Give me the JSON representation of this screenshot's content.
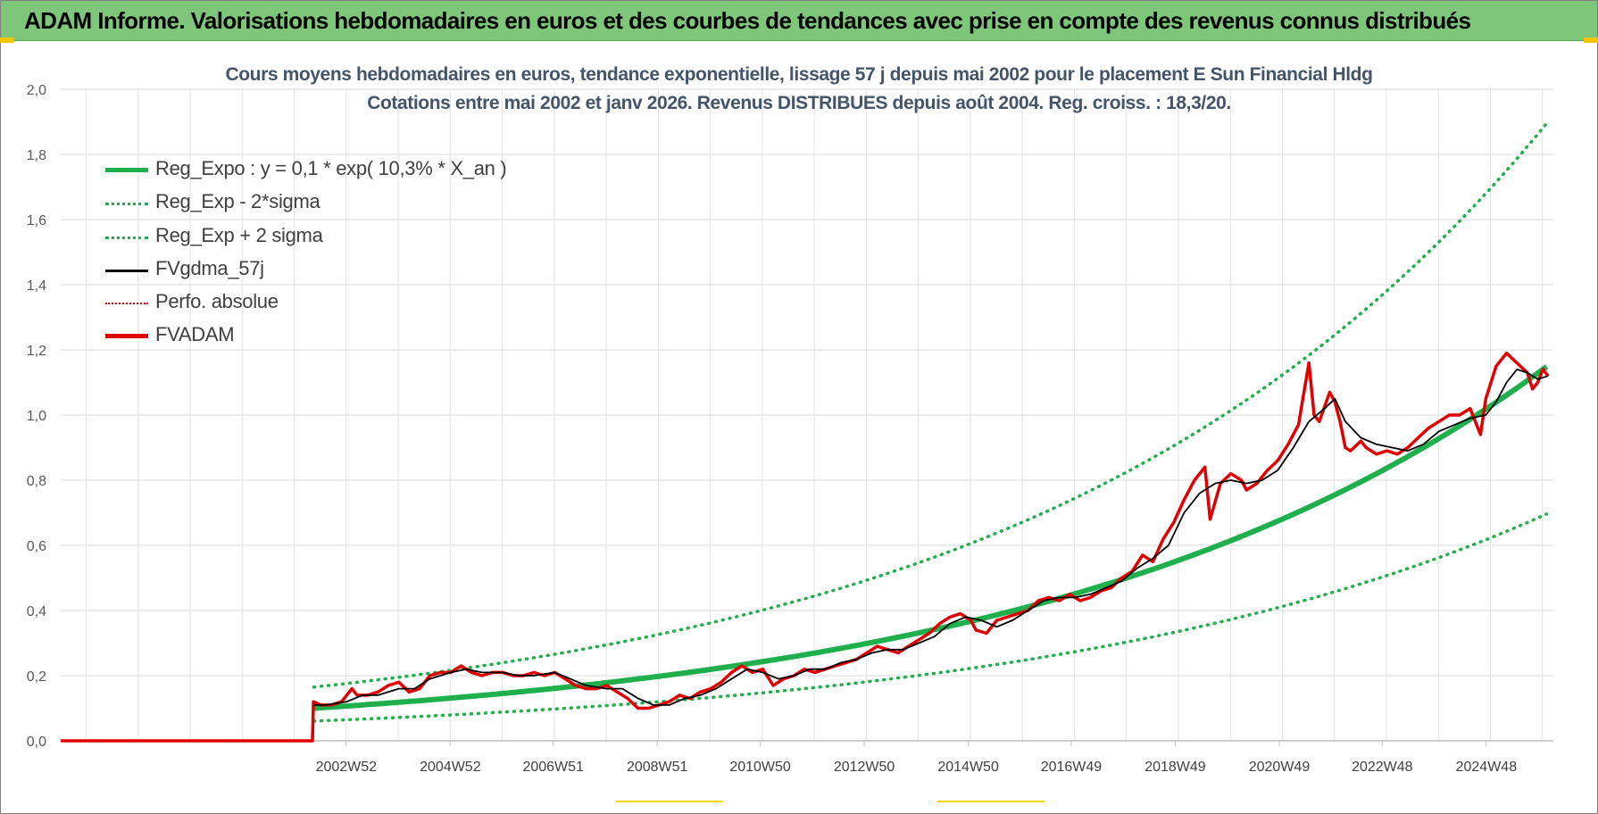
{
  "header": {
    "title": "ADAM Informe. Valorisations hebdomadaires en euros et des courbes de tendances avec prise en compte des revenus connus distribués"
  },
  "colors": {
    "header_bg": "#7ec77a",
    "title_text": "#44546a",
    "regression_green": "#1faf4c",
    "fvadam_red": "#e00000",
    "fvgdma_black": "#000000"
  },
  "chart_data": {
    "type": "line",
    "title": "Cours moyens hebdomadaires en euros, tendance exponentielle, lissage 57 j depuis mai 2002 pour le placement E Sun Financial Hldg",
    "subtitle": "Cotations entre mai 2002 et janv 2026. Revenus DISTRIBUES depuis août 2004. Reg. croiss. : 18,3/20.",
    "xlabel": "",
    "ylabel": "",
    "x_range_years": [
      1997.5,
      2026.2
    ],
    "ylim": [
      0,
      2.0
    ],
    "y_ticks": [
      "0,0",
      "0,2",
      "0,4",
      "0,6",
      "0,8",
      "1,0",
      "1,2",
      "1,4",
      "1,6",
      "1,8",
      "2,0"
    ],
    "x_tick_labels": [
      {
        "label": "2002W52",
        "year": 2002.99
      },
      {
        "label": "2004W52",
        "year": 2004.99
      },
      {
        "label": "2006W51",
        "year": 2006.97
      },
      {
        "label": "2008W51",
        "year": 2008.97
      },
      {
        "label": "2010W50",
        "year": 2010.95
      },
      {
        "label": "2012W50",
        "year": 2012.95
      },
      {
        "label": "2014W50",
        "year": 2014.95
      },
      {
        "label": "2016W49",
        "year": 2016.93
      },
      {
        "label": "2018W49",
        "year": 2018.93
      },
      {
        "label": "2020W49",
        "year": 2020.93
      },
      {
        "label": "2022W48",
        "year": 2022.91
      },
      {
        "label": "2024W48",
        "year": 2024.91
      }
    ],
    "grid": true,
    "legend_position": "top-left",
    "regression": {
      "a": 0.1,
      "rate": 0.103,
      "start_year": 2002.37,
      "end_year": 2026.1,
      "sigma_factor": 1.65
    },
    "series": [
      {
        "name": "Reg_Expo : y = 0,1 * exp( 10,3% *  X_an )",
        "style": "solid-green",
        "values": []
      },
      {
        "name": "Reg_Exp - 2*sigma",
        "style": "dot-green",
        "values": []
      },
      {
        "name": "Reg_Exp + 2 sigma",
        "style": "dot-green",
        "values": []
      },
      {
        "name": "FVgdma_57j",
        "style": "solid-black",
        "x": [
          2002.37,
          2002.6,
          2003.0,
          2003.3,
          2003.6,
          2004.0,
          2004.3,
          2004.6,
          2005.0,
          2005.3,
          2005.6,
          2006.0,
          2006.3,
          2006.6,
          2007.0,
          2007.3,
          2007.6,
          2008.0,
          2008.3,
          2008.6,
          2008.9,
          2009.2,
          2009.5,
          2009.8,
          2010.1,
          2010.4,
          2010.7,
          2011.0,
          2011.3,
          2011.6,
          2011.9,
          2012.2,
          2012.5,
          2012.8,
          2013.1,
          2013.4,
          2013.7,
          2014.0,
          2014.3,
          2014.6,
          2014.9,
          2015.2,
          2015.5,
          2015.8,
          2016.1,
          2016.4,
          2016.7,
          2017.0,
          2017.3,
          2017.6,
          2017.9,
          2018.2,
          2018.5,
          2018.8,
          2019.1,
          2019.4,
          2019.7,
          2020.0,
          2020.3,
          2020.6,
          2020.9,
          2021.2,
          2021.5,
          2021.8,
          2022.0,
          2022.2,
          2022.5,
          2022.8,
          2023.1,
          2023.4,
          2023.7,
          2024.0,
          2024.3,
          2024.6,
          2024.9,
          2025.1,
          2025.3,
          2025.5,
          2025.7,
          2025.9,
          2026.1
        ],
        "y": [
          0.11,
          0.11,
          0.12,
          0.14,
          0.14,
          0.16,
          0.16,
          0.19,
          0.21,
          0.22,
          0.21,
          0.21,
          0.2,
          0.2,
          0.21,
          0.19,
          0.17,
          0.16,
          0.16,
          0.13,
          0.11,
          0.11,
          0.13,
          0.14,
          0.16,
          0.19,
          0.22,
          0.21,
          0.19,
          0.2,
          0.22,
          0.22,
          0.24,
          0.25,
          0.27,
          0.28,
          0.28,
          0.3,
          0.32,
          0.36,
          0.38,
          0.37,
          0.35,
          0.37,
          0.4,
          0.43,
          0.44,
          0.44,
          0.45,
          0.47,
          0.49,
          0.53,
          0.56,
          0.6,
          0.7,
          0.76,
          0.79,
          0.8,
          0.79,
          0.8,
          0.83,
          0.9,
          0.98,
          1.02,
          1.05,
          0.98,
          0.93,
          0.91,
          0.9,
          0.89,
          0.91,
          0.95,
          0.97,
          0.99,
          1.0,
          1.04,
          1.1,
          1.14,
          1.13,
          1.11,
          1.12
        ]
      },
      {
        "name": "Perfo. absolue",
        "style": "dot-red",
        "values": []
      },
      {
        "name": "FVADAM",
        "style": "solid-red",
        "x": [
          1997.5,
          2002.34,
          2002.36,
          2002.5,
          2002.7,
          2002.9,
          2003.1,
          2003.2,
          2003.4,
          2003.6,
          2003.8,
          2004.0,
          2004.2,
          2004.4,
          2004.6,
          2004.8,
          2005.0,
          2005.2,
          2005.4,
          2005.6,
          2005.8,
          2006.0,
          2006.2,
          2006.4,
          2006.6,
          2006.8,
          2007.0,
          2007.2,
          2007.4,
          2007.6,
          2007.8,
          2008.0,
          2008.2,
          2008.4,
          2008.6,
          2008.8,
          2009.0,
          2009.2,
          2009.4,
          2009.6,
          2009.8,
          2010.0,
          2010.2,
          2010.4,
          2010.6,
          2010.8,
          2011.0,
          2011.2,
          2011.4,
          2011.6,
          2011.8,
          2012.0,
          2012.2,
          2012.4,
          2012.6,
          2012.8,
          2013.0,
          2013.2,
          2013.4,
          2013.6,
          2013.8,
          2014.0,
          2014.2,
          2014.4,
          2014.6,
          2014.8,
          2015.0,
          2015.1,
          2015.3,
          2015.5,
          2015.7,
          2015.9,
          2016.1,
          2016.3,
          2016.5,
          2016.7,
          2016.9,
          2017.1,
          2017.3,
          2017.5,
          2017.7,
          2017.9,
          2018.1,
          2018.3,
          2018.5,
          2018.7,
          2018.9,
          2019.1,
          2019.3,
          2019.5,
          2019.6,
          2019.8,
          2020.0,
          2020.2,
          2020.3,
          2020.5,
          2020.7,
          2020.9,
          2021.1,
          2021.3,
          2021.5,
          2021.6,
          2021.7,
          2021.9,
          2022.0,
          2022.1,
          2022.2,
          2022.3,
          2022.5,
          2022.6,
          2022.8,
          2023.0,
          2023.2,
          2023.4,
          2023.6,
          2023.8,
          2024.0,
          2024.2,
          2024.4,
          2024.6,
          2024.8,
          2024.9,
          2025.0,
          2025.1,
          2025.3,
          2025.5,
          2025.7,
          2025.8,
          2025.9,
          2026.0,
          2026.1
        ],
        "y": [
          0.0,
          0.0,
          0.12,
          0.11,
          0.11,
          0.12,
          0.16,
          0.14,
          0.14,
          0.15,
          0.17,
          0.18,
          0.15,
          0.16,
          0.2,
          0.21,
          0.21,
          0.23,
          0.21,
          0.2,
          0.21,
          0.21,
          0.2,
          0.2,
          0.21,
          0.2,
          0.21,
          0.19,
          0.17,
          0.16,
          0.16,
          0.17,
          0.15,
          0.13,
          0.1,
          0.1,
          0.11,
          0.12,
          0.14,
          0.13,
          0.15,
          0.16,
          0.18,
          0.21,
          0.23,
          0.21,
          0.22,
          0.17,
          0.19,
          0.2,
          0.22,
          0.21,
          0.22,
          0.23,
          0.24,
          0.25,
          0.27,
          0.29,
          0.28,
          0.27,
          0.29,
          0.31,
          0.33,
          0.36,
          0.38,
          0.39,
          0.37,
          0.34,
          0.33,
          0.37,
          0.38,
          0.39,
          0.4,
          0.43,
          0.44,
          0.43,
          0.45,
          0.43,
          0.44,
          0.46,
          0.47,
          0.5,
          0.52,
          0.57,
          0.55,
          0.62,
          0.67,
          0.74,
          0.8,
          0.84,
          0.68,
          0.79,
          0.82,
          0.8,
          0.77,
          0.79,
          0.83,
          0.86,
          0.91,
          0.97,
          1.16,
          1.0,
          0.98,
          1.07,
          1.04,
          0.98,
          0.9,
          0.89,
          0.92,
          0.9,
          0.88,
          0.89,
          0.88,
          0.9,
          0.93,
          0.96,
          0.98,
          1.0,
          1.0,
          1.02,
          0.94,
          1.05,
          1.1,
          1.15,
          1.19,
          1.16,
          1.13,
          1.08,
          1.1,
          1.14,
          1.12
        ]
      }
    ]
  }
}
